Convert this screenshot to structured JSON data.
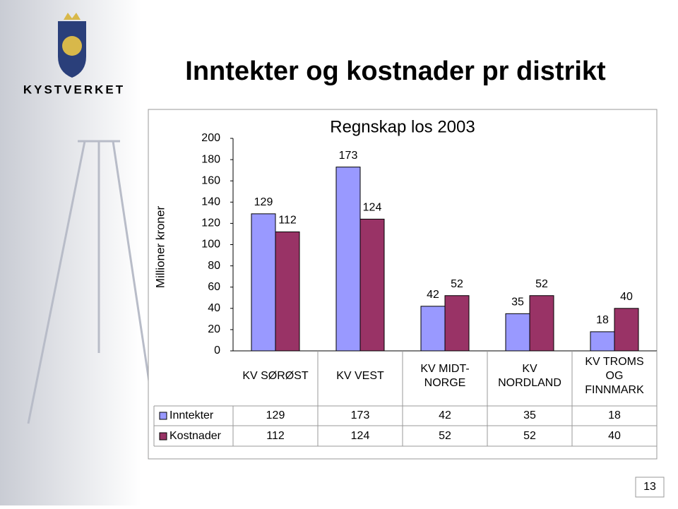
{
  "slide": {
    "title": "Inntekter og kostnader pr distrikt",
    "logo_text": "KYSTVERKET",
    "page_number": "13"
  },
  "chart_data": {
    "type": "bar",
    "title": "Regnskap los 2003",
    "y_label": "Millioner kroner",
    "categories": [
      "KV SØRØST",
      "KV VEST",
      "KV MIDT-\nNORGE",
      "KV\nNORDLAND",
      "KV TROMS\nOG\nFINNMARK"
    ],
    "series": [
      {
        "name": "Inntekter",
        "color": "#9999ff",
        "values": [
          129,
          173,
          42,
          35,
          18
        ]
      },
      {
        "name": "Kostnader",
        "color": "#993366",
        "values": [
          112,
          124,
          52,
          52,
          40
        ]
      }
    ],
    "ylim": [
      0,
      200
    ],
    "yticks": [
      0,
      20,
      40,
      60,
      80,
      100,
      120,
      140,
      160,
      180,
      200
    ],
    "grid": false,
    "data_table": true
  }
}
